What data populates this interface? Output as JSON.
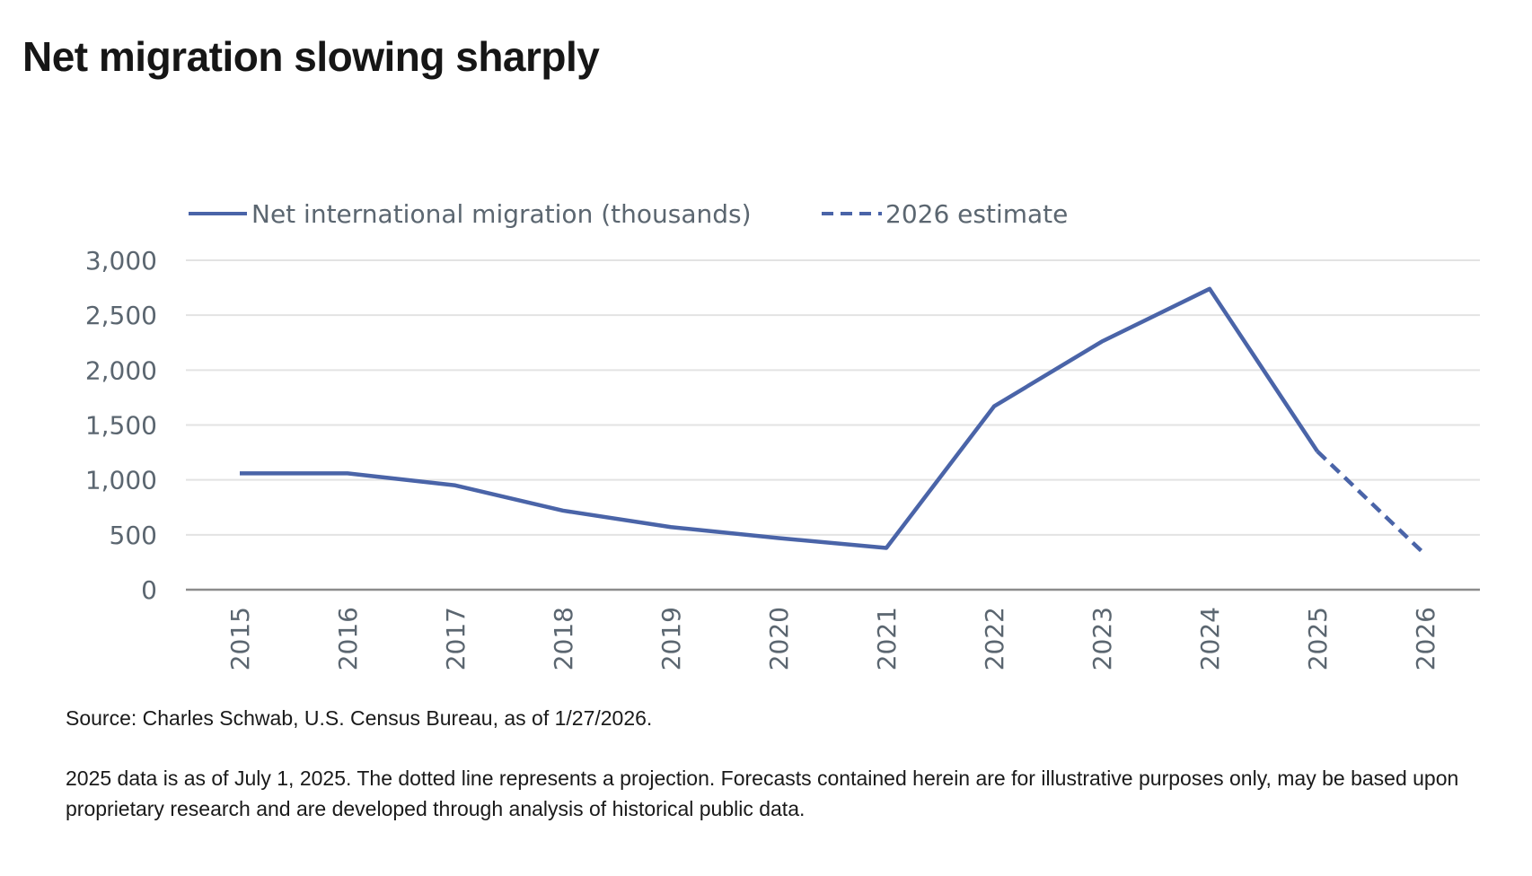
{
  "title": "Net migration slowing sharply",
  "chart_data": {
    "type": "line",
    "legend_position": "top-left",
    "grid": true,
    "categories": [
      "2015",
      "2016",
      "2017",
      "2018",
      "2019",
      "2020",
      "2021",
      "2022",
      "2023",
      "2024",
      "2025",
      "2026"
    ],
    "series": [
      {
        "name": "Net international migration (thousands)",
        "style": "solid",
        "x": [
          "2015",
          "2016",
          "2017",
          "2018",
          "2019",
          "2020",
          "2021",
          "2022",
          "2023",
          "2024",
          "2025"
        ],
        "values": [
          1060,
          1060,
          950,
          720,
          570,
          470,
          380,
          1670,
          2260,
          2740,
          1260
        ]
      },
      {
        "name": "2026 estimate",
        "style": "dashed",
        "x": [
          "2025",
          "2026"
        ],
        "values": [
          1260,
          320
        ]
      }
    ],
    "ylim": [
      0,
      3000
    ],
    "yticks": [
      0,
      500,
      1000,
      1500,
      2000,
      2500,
      3000
    ],
    "ytick_labels": [
      "0",
      "500",
      "1,000",
      "1,500",
      "2,000",
      "2,500",
      "3,000"
    ],
    "xlabel": "",
    "ylabel": "",
    "colors": {
      "line": "#4a64a8",
      "grid": "#e3e3e3",
      "axis": "#8c8c8c",
      "tick_text": "#5b6670"
    }
  },
  "notes": {
    "source": "Source: Charles Schwab, U.S. Census Bureau, as of 1/27/2026.",
    "disclaimer": "2025 data is as of July 1, 2025. The dotted line represents a projection. Forecasts contained herein are for illustrative purposes only, may be based upon proprietary research and are developed through analysis of historical public data."
  }
}
